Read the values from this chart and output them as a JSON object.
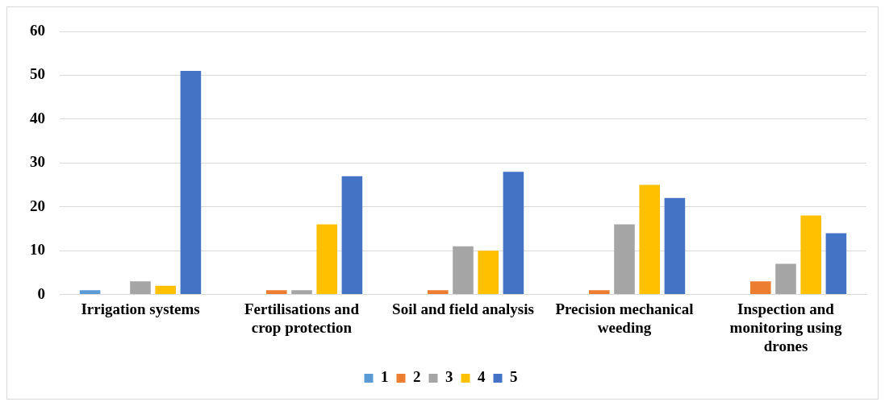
{
  "chart_data": {
    "type": "bar",
    "categories": [
      "Irrigation systems",
      "Fertilisations and crop protection",
      "Soil and field analysis",
      "Precision mechanical weeding",
      "Inspection and monitoring using drones"
    ],
    "series": [
      {
        "name": "1",
        "color": "#5b9bd5",
        "values": [
          1,
          0,
          0,
          0,
          0
        ]
      },
      {
        "name": "2",
        "color": "#ed7d31",
        "values": [
          0,
          1,
          1,
          1,
          3
        ]
      },
      {
        "name": "3",
        "color": "#a5a5a5",
        "values": [
          3,
          1,
          11,
          16,
          7
        ]
      },
      {
        "name": "4",
        "color": "#ffc000",
        "values": [
          2,
          16,
          10,
          25,
          18
        ]
      },
      {
        "name": "5",
        "color": "#4472c4",
        "values": [
          51,
          27,
          28,
          22,
          14
        ]
      }
    ],
    "ylim": [
      0,
      60
    ],
    "yticks": [
      0,
      10,
      20,
      30,
      40,
      50,
      60
    ],
    "grid": "y",
    "legend": "bottom"
  }
}
